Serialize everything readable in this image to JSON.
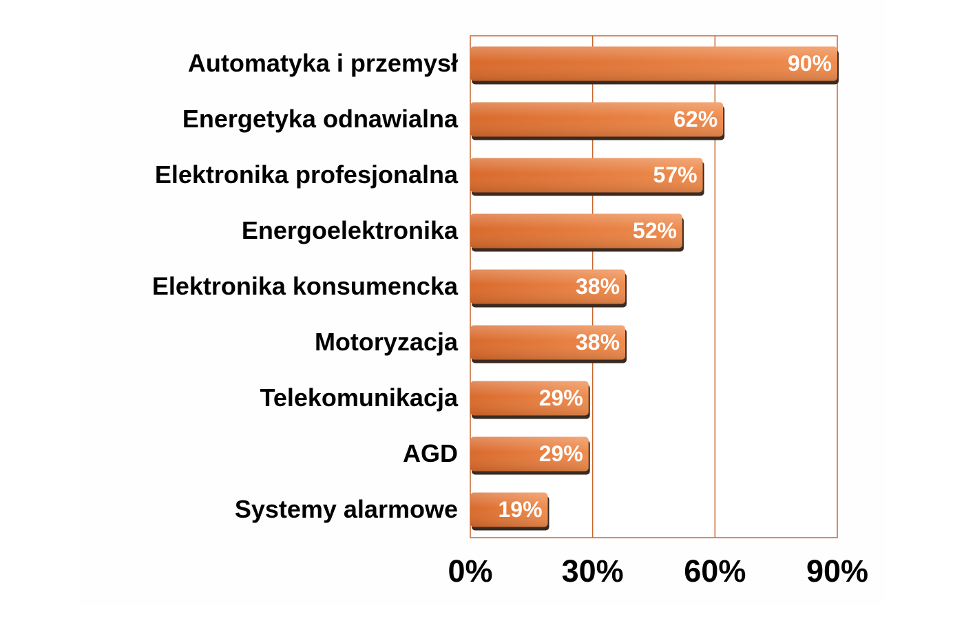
{
  "chart_data": {
    "type": "bar",
    "orientation": "horizontal",
    "categories": [
      "Automatyka i przemysł",
      "Energetyka odnawialna",
      "Elektronika profesjonalna",
      "Energoelektronika",
      "Elektronika konsumencka",
      "Motoryzacja",
      "Telekomunikacja",
      "AGD",
      "Systemy alarmowe"
    ],
    "values": [
      90,
      62,
      57,
      52,
      38,
      38,
      29,
      29,
      19
    ],
    "data_labels": [
      "90%",
      "62%",
      "57%",
      "52%",
      "38%",
      "38%",
      "29%",
      "29%",
      "19%"
    ],
    "xlim": [
      0,
      90
    ],
    "xticks": [
      0,
      30,
      60,
      90
    ],
    "xtick_labels": [
      "0%",
      "30%",
      "60%",
      "90%"
    ],
    "grid": "vertical",
    "legend": "none",
    "colors": {
      "bar_light": "#ef8c4e",
      "bar_dark": "#d96a2c",
      "bar_shadow": "#3a2a20",
      "grid": "#c8662f",
      "frame_bg": "#ffffff",
      "page_bg": "#fefefe"
    }
  }
}
